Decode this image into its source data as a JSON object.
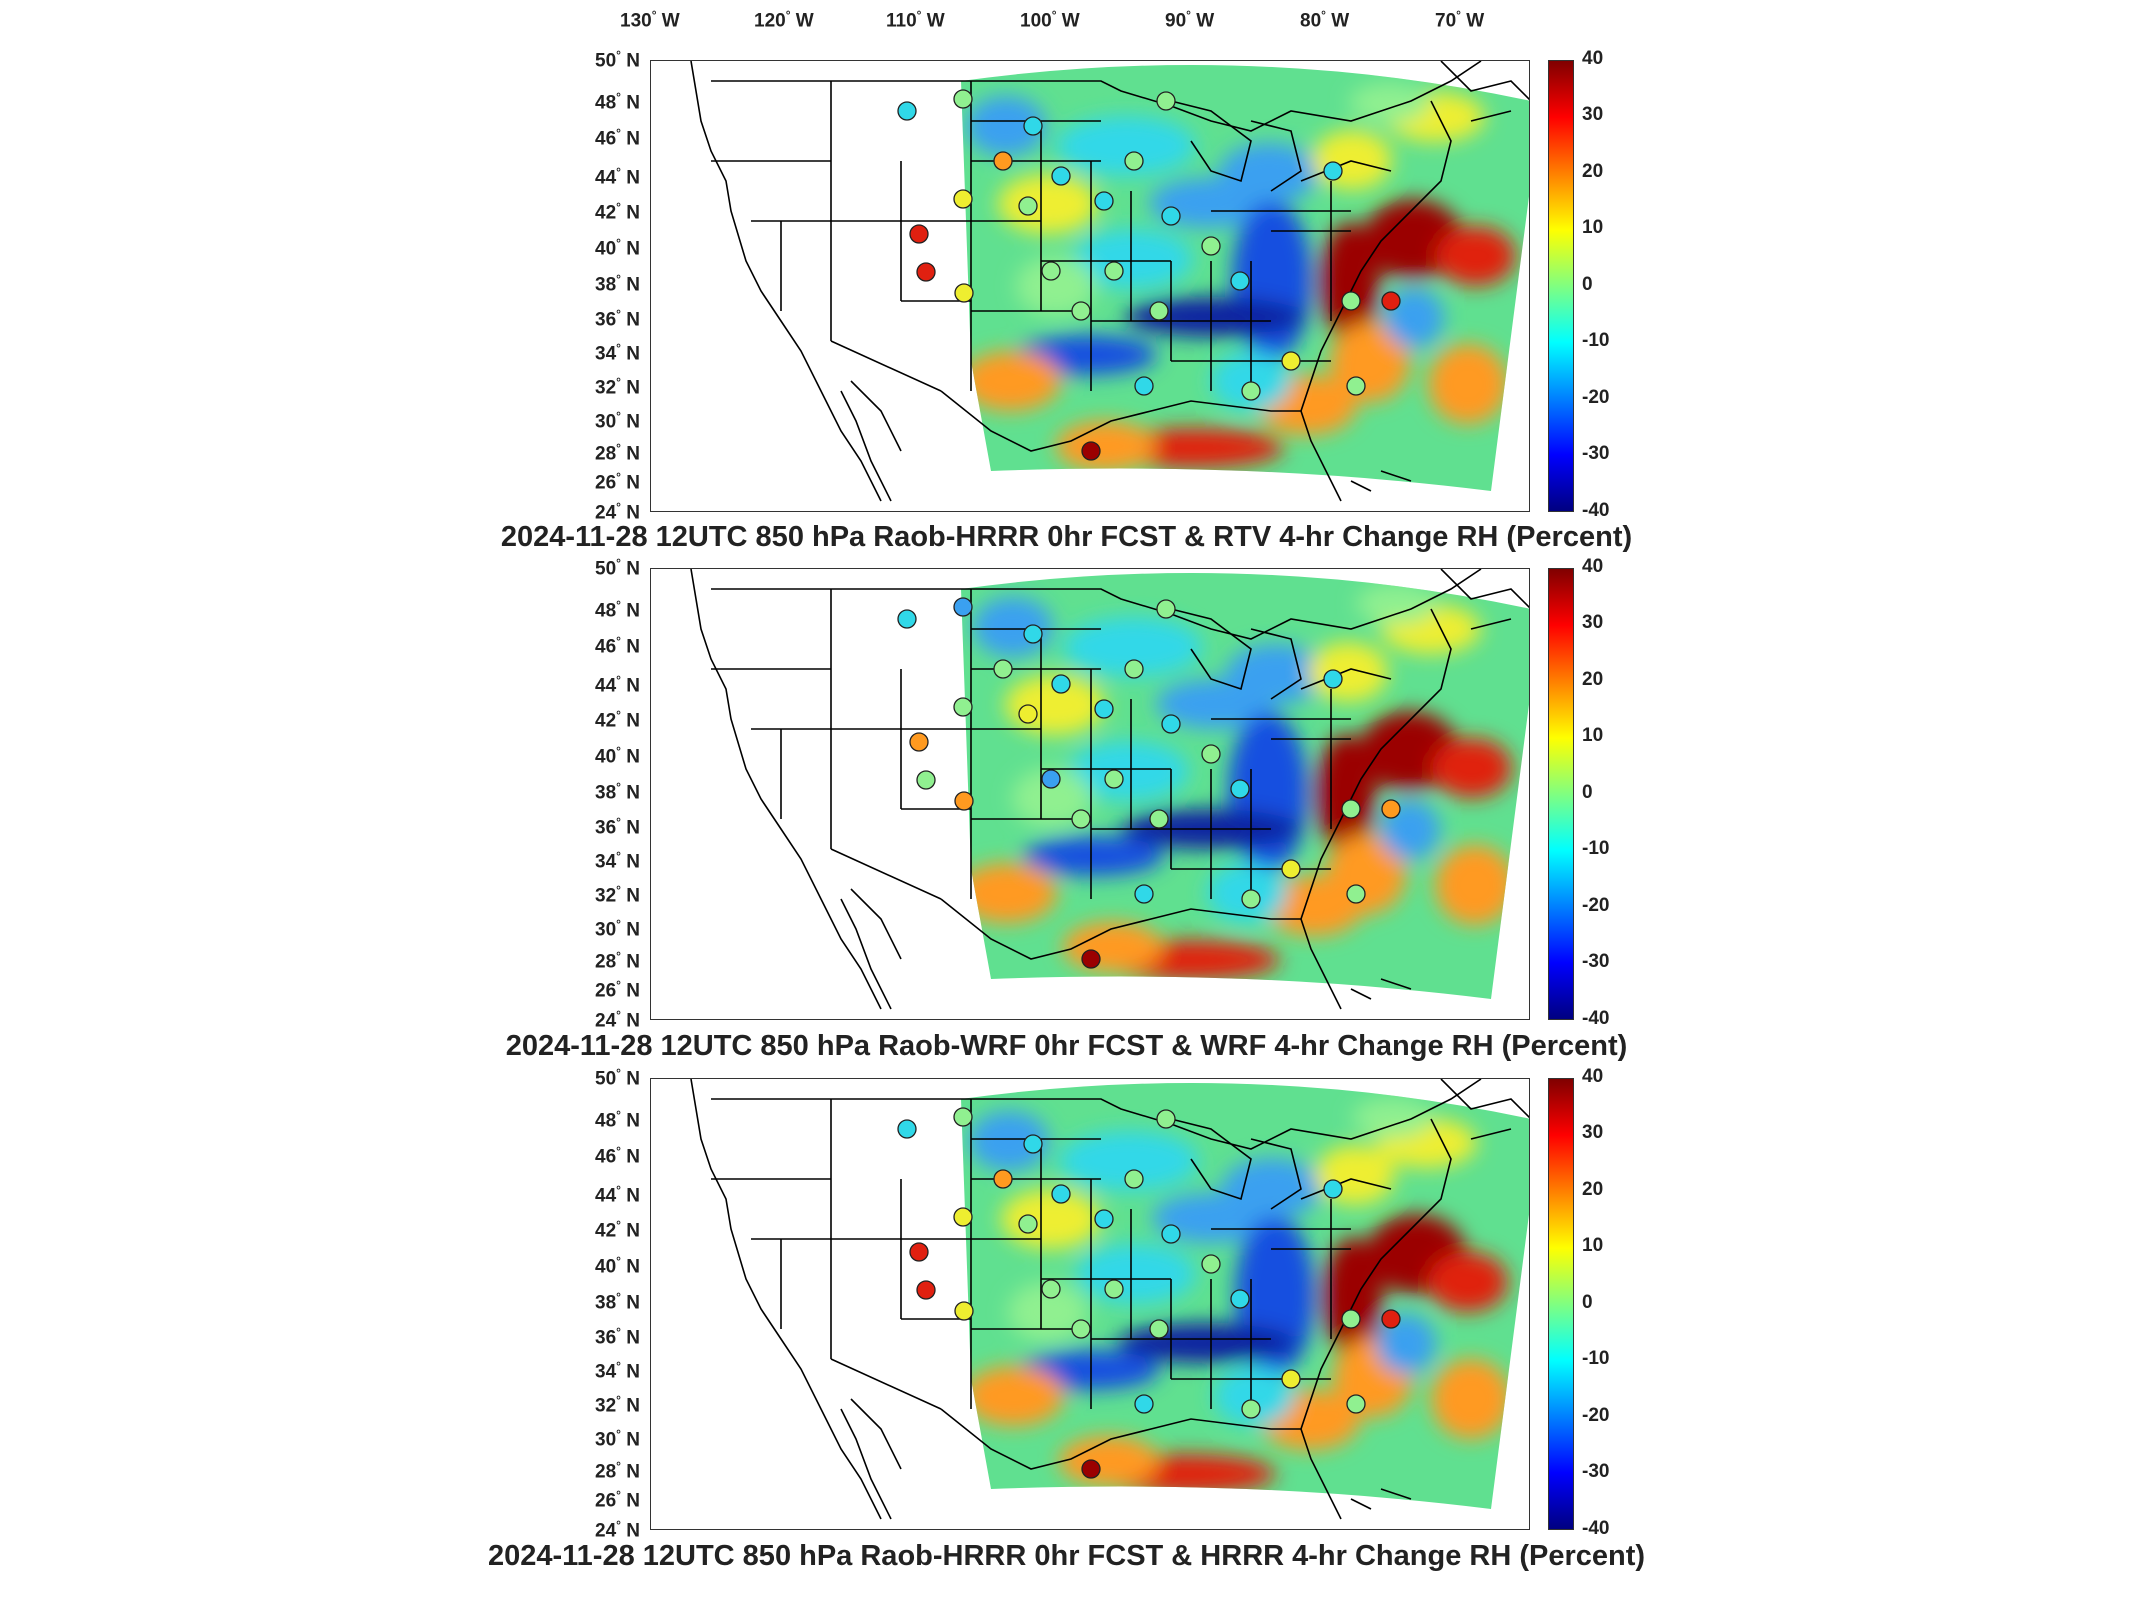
{
  "longitude_labels": [
    "130",
    "120",
    "110",
    "100",
    "90",
    "80",
    "70"
  ],
  "longitude_suffix": "W",
  "latitude_labels": [
    "50",
    "48",
    "46",
    "44",
    "42",
    "40",
    "38",
    "36",
    "34",
    "32",
    "30",
    "28",
    "26",
    "24"
  ],
  "latitude_suffix": "N",
  "colorbar_ticks": [
    "40",
    "30",
    "20",
    "10",
    "0",
    "-10",
    "-20",
    "-30",
    "-40"
  ],
  "colorbar_colors": [
    "#800000",
    "#ff0000",
    "#ff8000",
    "#ffff00",
    "#80ff80",
    "#00ffff",
    "#0080ff",
    "#0000ff",
    "#000080"
  ],
  "panels": [
    {
      "title": "2024-11-28 12UTC 850 hPa Raob-HRRR 0hr FCST & RTV 4-hr Change RH (Percent)"
    },
    {
      "title": "2024-11-28 12UTC 850 hPa Raob-WRF 0hr FCST & WRF 4-hr Change RH (Percent)"
    },
    {
      "title": "2024-11-28 12UTC 850 hPa Raob-HRRR 0hr FCST & HRRR 4-hr Change RH (Percent)"
    }
  ]
}
